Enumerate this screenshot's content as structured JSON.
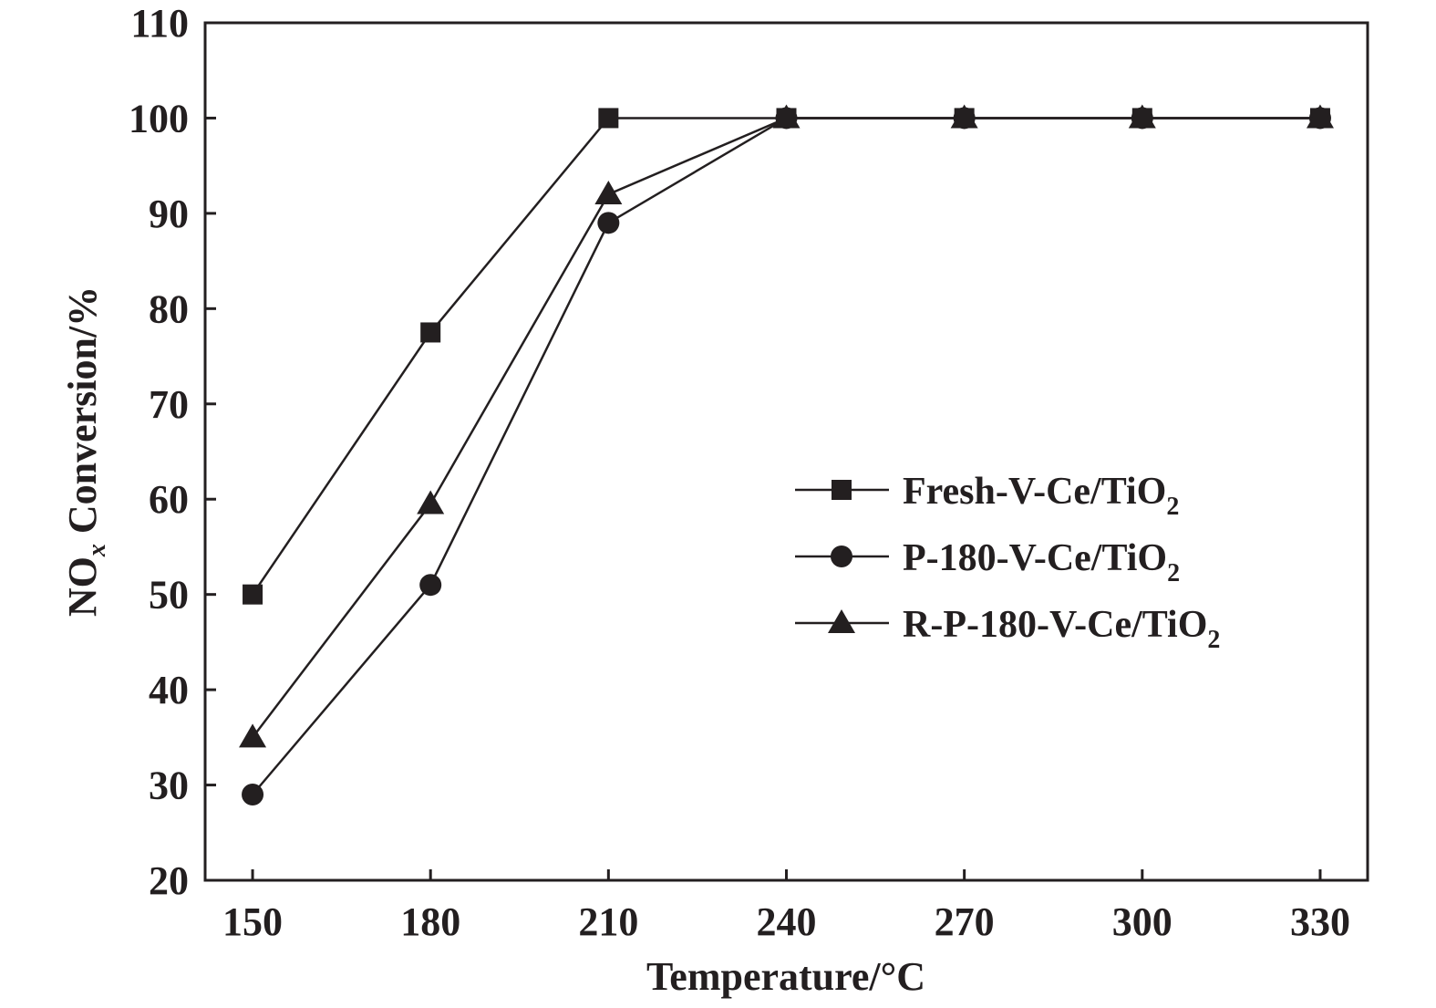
{
  "chart_data": {
    "type": "line",
    "xlabel": "Temperature/°C",
    "ylabel": {
      "main": "NO",
      "sub": "x",
      "rest": " Conversion/%"
    },
    "x": [
      150,
      180,
      210,
      240,
      270,
      300,
      330
    ],
    "xlim": [
      142,
      338
    ],
    "ylim": [
      20,
      110
    ],
    "xticks": [
      150,
      180,
      210,
      240,
      270,
      300,
      330
    ],
    "yticks": [
      20,
      30,
      40,
      50,
      60,
      70,
      80,
      90,
      100,
      110
    ],
    "grid": false,
    "legend_position": "center-right",
    "series": [
      {
        "name": {
          "base": "Fresh-V-Ce/TiO",
          "sub": "2"
        },
        "marker": "square",
        "values": [
          50,
          77.5,
          100,
          100,
          100,
          100,
          100
        ]
      },
      {
        "name": {
          "base": "P-180-V-Ce/TiO",
          "sub": "2"
        },
        "marker": "circle",
        "values": [
          29,
          51,
          89,
          100,
          100,
          100,
          100
        ]
      },
      {
        "name": {
          "base": "R-P-180-V-Ce/TiO",
          "sub": "2"
        },
        "marker": "triangle",
        "values": [
          35,
          59.5,
          92,
          100,
          100,
          100,
          100
        ]
      }
    ],
    "colors": {
      "ink": "#231f20"
    }
  }
}
